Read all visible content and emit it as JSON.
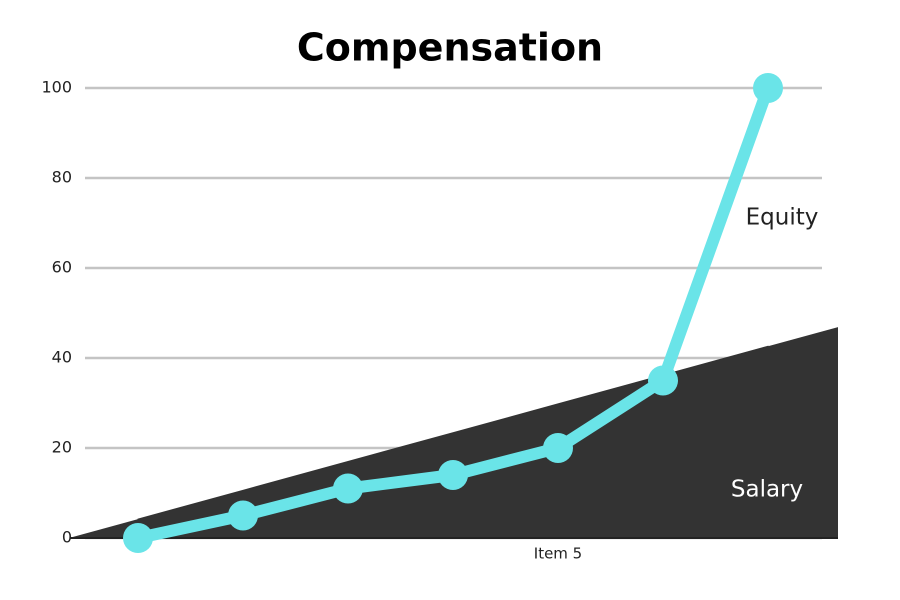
{
  "chart_data": {
    "type": "line",
    "title": "Compensation",
    "categories": [
      null,
      null,
      null,
      null,
      "Item 5",
      null,
      null
    ],
    "ylim": [
      0,
      100
    ],
    "yticks": [
      0,
      20,
      40,
      60,
      80,
      100
    ],
    "grid": true,
    "series": [
      {
        "name": "Salary",
        "type": "area",
        "color": "#333333",
        "label_color": "#ffffff",
        "values": [
          4.2,
          10.6,
          17.0,
          23.4,
          29.8,
          36.2,
          42.6
        ]
      },
      {
        "name": "Equity",
        "type": "line",
        "color": "#6ae4e8",
        "label_color": "#222222",
        "values": [
          0,
          5,
          11,
          14,
          20,
          35,
          100
        ]
      }
    ]
  }
}
